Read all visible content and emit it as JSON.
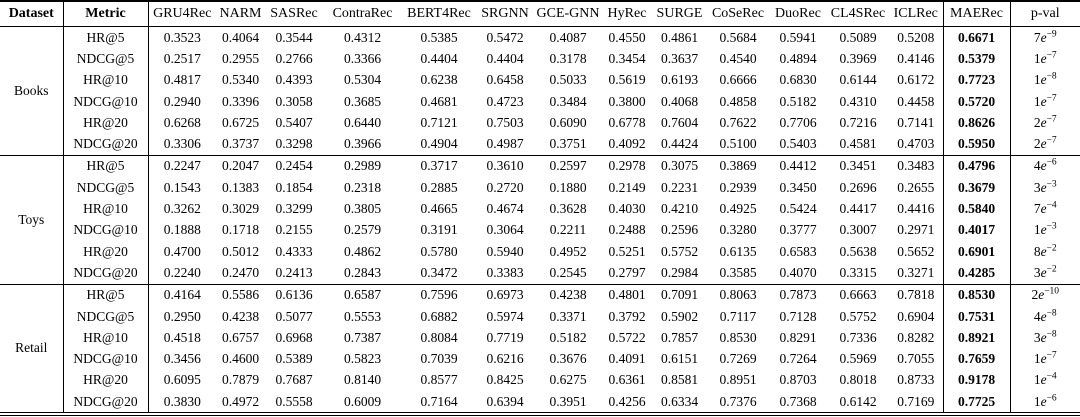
{
  "colors": {
    "text": "#000000",
    "background": "#ffffff",
    "rule": "#000000"
  },
  "table": {
    "headers": {
      "dataset": "Dataset",
      "metric": "Metric",
      "models": [
        "GRU4Rec",
        "NARM",
        "SASRec",
        "ContraRec",
        "BERT4Rec",
        "SRGNN",
        "GCE-GNN",
        "HyRec",
        "SURGE",
        "CoSeRec",
        "DuoRec",
        "CL4SRec",
        "ICLRec"
      ],
      "ours": "MAERec",
      "pval": "p-val"
    },
    "groups": [
      {
        "dataset": "Books",
        "rows": [
          {
            "metric": "HR@5",
            "values": [
              "0.3523",
              "0.4064",
              "0.3544",
              "0.4312",
              "0.5385",
              "0.5472",
              "0.4087",
              "0.4550",
              "0.4861",
              "0.5684",
              "0.5941",
              "0.5089",
              "0.5208"
            ],
            "ours": "0.6671",
            "pval": "7e-9"
          },
          {
            "metric": "NDCG@5",
            "values": [
              "0.2517",
              "0.2955",
              "0.2766",
              "0.3366",
              "0.4404",
              "0.4404",
              "0.3178",
              "0.3454",
              "0.3637",
              "0.4540",
              "0.4894",
              "0.3969",
              "0.4146"
            ],
            "ours": "0.5379",
            "pval": "1e-7"
          },
          {
            "metric": "HR@10",
            "values": [
              "0.4817",
              "0.5340",
              "0.4393",
              "0.5304",
              "0.6238",
              "0.6458",
              "0.5033",
              "0.5619",
              "0.6193",
              "0.6666",
              "0.6830",
              "0.6144",
              "0.6172"
            ],
            "ours": "0.7723",
            "pval": "1e-8"
          },
          {
            "metric": "NDCG@10",
            "values": [
              "0.2940",
              "0.3396",
              "0.3058",
              "0.3685",
              "0.4681",
              "0.4723",
              "0.3484",
              "0.3800",
              "0.4068",
              "0.4858",
              "0.5182",
              "0.4310",
              "0.4458"
            ],
            "ours": "0.5720",
            "pval": "1e-7"
          },
          {
            "metric": "HR@20",
            "values": [
              "0.6268",
              "0.6725",
              "0.5407",
              "0.6440",
              "0.7121",
              "0.7503",
              "0.6090",
              "0.6778",
              "0.7604",
              "0.7622",
              "0.7706",
              "0.7216",
              "0.7141"
            ],
            "ours": "0.8626",
            "pval": "2e-7"
          },
          {
            "metric": "NDCG@20",
            "values": [
              "0.3306",
              "0.3737",
              "0.3298",
              "0.3966",
              "0.4904",
              "0.4987",
              "0.3751",
              "0.4092",
              "0.4424",
              "0.5100",
              "0.5403",
              "0.4581",
              "0.4703"
            ],
            "ours": "0.5950",
            "pval": "2e-7"
          }
        ]
      },
      {
        "dataset": "Toys",
        "rows": [
          {
            "metric": "HR@5",
            "values": [
              "0.2247",
              "0.2047",
              "0.2454",
              "0.2989",
              "0.3717",
              "0.3610",
              "0.2597",
              "0.2978",
              "0.3075",
              "0.3869",
              "0.4412",
              "0.3451",
              "0.3483"
            ],
            "ours": "0.4796",
            "pval": "4e-6"
          },
          {
            "metric": "NDCG@5",
            "values": [
              "0.1543",
              "0.1383",
              "0.1854",
              "0.2318",
              "0.2885",
              "0.2720",
              "0.1880",
              "0.2149",
              "0.2231",
              "0.2939",
              "0.3450",
              "0.2696",
              "0.2655"
            ],
            "ours": "0.3679",
            "pval": "3e-3"
          },
          {
            "metric": "HR@10",
            "values": [
              "0.3262",
              "0.3029",
              "0.3299",
              "0.3805",
              "0.4665",
              "0.4674",
              "0.3628",
              "0.4030",
              "0.4210",
              "0.4925",
              "0.5424",
              "0.4417",
              "0.4416"
            ],
            "ours": "0.5840",
            "pval": "7e-4"
          },
          {
            "metric": "NDCG@10",
            "values": [
              "0.1888",
              "0.1718",
              "0.2155",
              "0.2579",
              "0.3191",
              "0.3064",
              "0.2211",
              "0.2488",
              "0.2596",
              "0.3280",
              "0.3777",
              "0.3007",
              "0.2971"
            ],
            "ours": "0.4017",
            "pval": "1e-3"
          },
          {
            "metric": "HR@20",
            "values": [
              "0.4700",
              "0.5012",
              "0.4333",
              "0.4862",
              "0.5780",
              "0.5940",
              "0.4952",
              "0.5251",
              "0.5752",
              "0.6135",
              "0.6583",
              "0.5638",
              "0.5652"
            ],
            "ours": "0.6901",
            "pval": "8e-2"
          },
          {
            "metric": "NDCG@20",
            "values": [
              "0.2240",
              "0.2470",
              "0.2413",
              "0.2843",
              "0.3472",
              "0.3383",
              "0.2545",
              "0.2797",
              "0.2984",
              "0.3585",
              "0.4070",
              "0.3315",
              "0.3271"
            ],
            "ours": "0.4285",
            "pval": "3e-2"
          }
        ]
      },
      {
        "dataset": "Retail",
        "rows": [
          {
            "metric": "HR@5",
            "values": [
              "0.4164",
              "0.5586",
              "0.6136",
              "0.6587",
              "0.7596",
              "0.6973",
              "0.4238",
              "0.4801",
              "0.7091",
              "0.8063",
              "0.7873",
              "0.6663",
              "0.7818"
            ],
            "ours": "0.8530",
            "pval": "2e-10"
          },
          {
            "metric": "NDCG@5",
            "values": [
              "0.2950",
              "0.4238",
              "0.5077",
              "0.5553",
              "0.6882",
              "0.5974",
              "0.3371",
              "0.3792",
              "0.5902",
              "0.7117",
              "0.7128",
              "0.5752",
              "0.6904"
            ],
            "ours": "0.7531",
            "pval": "4e-8"
          },
          {
            "metric": "HR@10",
            "values": [
              "0.4518",
              "0.6757",
              "0.6968",
              "0.7387",
              "0.8084",
              "0.7719",
              "0.5182",
              "0.5722",
              "0.7857",
              "0.8530",
              "0.8291",
              "0.7336",
              "0.8282"
            ],
            "ours": "0.8921",
            "pval": "3e-8"
          },
          {
            "metric": "NDCG@10",
            "values": [
              "0.3456",
              "0.4600",
              "0.5389",
              "0.5823",
              "0.7039",
              "0.6216",
              "0.3676",
              "0.4091",
              "0.6151",
              "0.7269",
              "0.7264",
              "0.5969",
              "0.7055"
            ],
            "ours": "0.7659",
            "pval": "1e-7"
          },
          {
            "metric": "HR@20",
            "values": [
              "0.6095",
              "0.7879",
              "0.7687",
              "0.8140",
              "0.8577",
              "0.8425",
              "0.6275",
              "0.6361",
              "0.8581",
              "0.8951",
              "0.8703",
              "0.8018",
              "0.8733"
            ],
            "ours": "0.9178",
            "pval": "1e-4"
          },
          {
            "metric": "NDCG@20",
            "values": [
              "0.3830",
              "0.4972",
              "0.5558",
              "0.6009",
              "0.7164",
              "0.6394",
              "0.3951",
              "0.4256",
              "0.6334",
              "0.7376",
              "0.7368",
              "0.6142",
              "0.7169"
            ],
            "ours": "0.7725",
            "pval": "1e-6"
          }
        ]
      }
    ]
  }
}
